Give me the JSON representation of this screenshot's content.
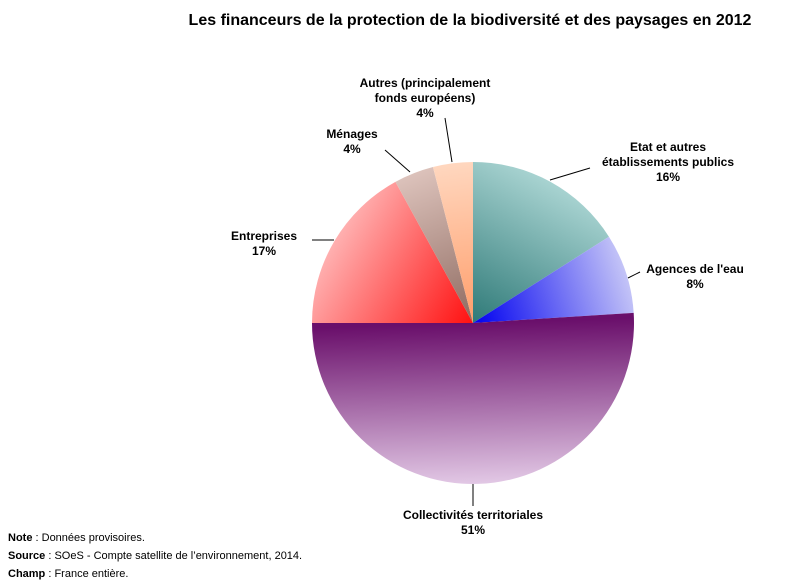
{
  "chart_data": {
    "type": "pie",
    "title": "Les financeurs de la protection de la biodiversité et des paysages en 2012",
    "slices": [
      {
        "label_lines": [
          "Etat et autres",
          "établissements publics"
        ],
        "value_label": "16%",
        "value": 16,
        "color": "#4f9c9c",
        "light": "#a8d3d1",
        "dark": "#2f7a78"
      },
      {
        "label_lines": [
          "Agences de l'eau"
        ],
        "value_label": "8%",
        "value": 8,
        "color": "#3a3aff",
        "light": "#c4c4f7",
        "dark": "#0000f0"
      },
      {
        "label_lines": [
          "Collectivités territoriales"
        ],
        "value_label": "51%",
        "value": 51,
        "color": "#9b4f9b",
        "light": "#e2c8e5",
        "dark": "#6a0f6b"
      },
      {
        "label_lines": [
          "Entreprises"
        ],
        "value_label": "17%",
        "value": 17,
        "color": "#ff4040",
        "light": "#ffb0b0",
        "dark": "#ff1010"
      },
      {
        "label_lines": [
          "Ménages"
        ],
        "value_label": "4%",
        "value": 4,
        "color": "#b08880",
        "light": "#dcc2bb",
        "dark": "#8e6a60"
      },
      {
        "label_lines": [
          "Autres (principalement",
          "fonds européens)"
        ],
        "value_label": "4%",
        "value": 4,
        "color": "#ffb080",
        "light": "#ffd7bf",
        "dark": "#ff9d6a"
      }
    ]
  },
  "notes": {
    "note_label": "Note",
    "note_text": " : Données provisoires.",
    "source_label": "Source",
    "source_text": " : SOeS - Compte satellite de l’environnement, 2014.",
    "champ_label": "Champ",
    "champ_text": " : France entière."
  }
}
